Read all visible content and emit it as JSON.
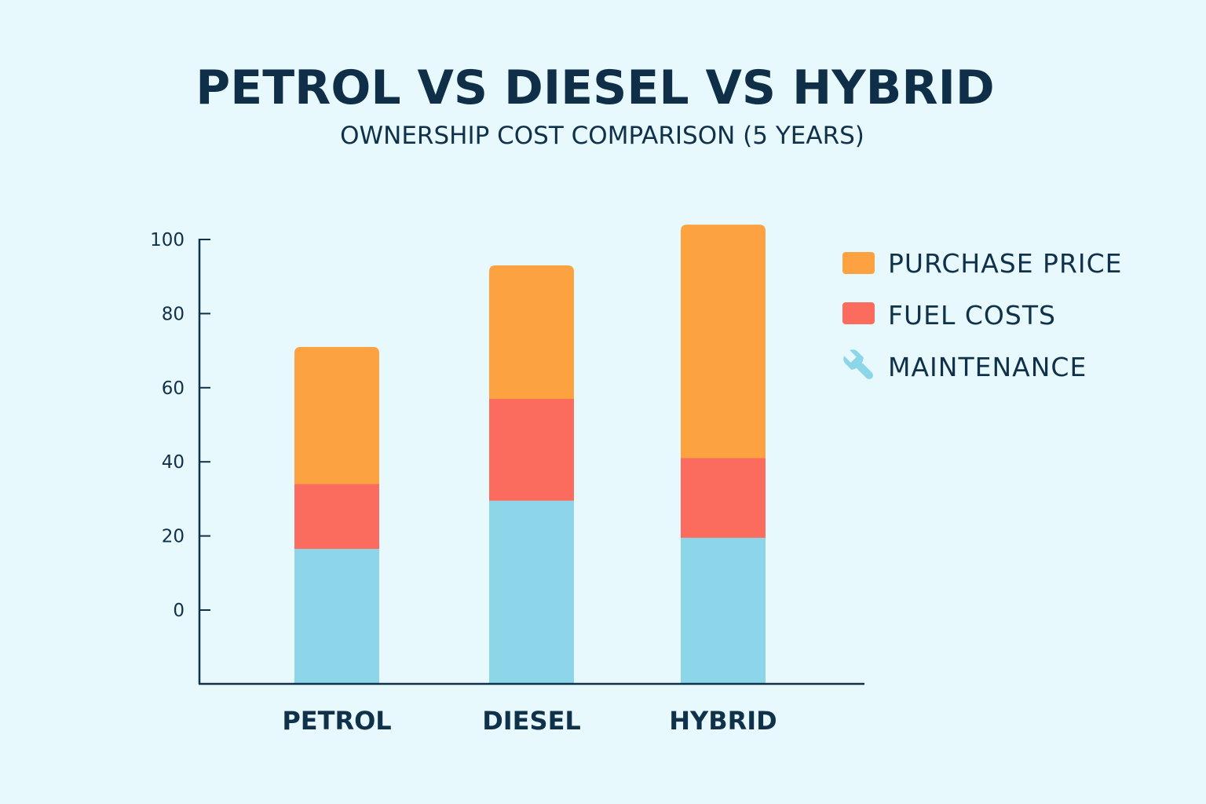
{
  "header": {
    "title": "PETROL VS DIESEL VS HYBRID",
    "subtitle": "OWNERSHIP COST COMPARISON (5 YEARS)"
  },
  "colors": {
    "background": "#e8f9fd",
    "text": "#10314a",
    "purchase": "#fca240",
    "fuel": "#fc6c5e",
    "maintenance": "#8dd6ea"
  },
  "legend": {
    "items": [
      {
        "label": "PURCHASE PRICE",
        "marker": "square",
        "color": "#fca240"
      },
      {
        "label": "FUEL COSTS",
        "marker": "square",
        "color": "#fc6c5e"
      },
      {
        "label": "MAINTENANCE",
        "marker": "wrench-icon",
        "color": "#8dd6ea"
      }
    ]
  },
  "chart_data": {
    "type": "bar",
    "stacked": true,
    "categories": [
      "PETROL",
      "DIESEL",
      "HYBRID"
    ],
    "series": [
      {
        "name": "MAINTENANCE",
        "color": "#8dd6ea",
        "values": [
          16.5,
          29.5,
          19.5
        ]
      },
      {
        "name": "FUEL COSTS",
        "color": "#fc6c5e",
        "values": [
          17.5,
          27.5,
          21.5
        ]
      },
      {
        "name": "PURCHASE PRICE",
        "color": "#fca240",
        "values": [
          37,
          36,
          63
        ]
      }
    ],
    "title": "PETROL VS DIESEL VS HYBRID",
    "subtitle": "OWNERSHIP COST COMPARISON (5 YEARS)",
    "xlabel": "",
    "ylabel": "",
    "yticks": [
      "0",
      "20",
      "40",
      "60",
      "80",
      "100"
    ],
    "yticks_values": [
      0,
      20,
      40,
      60,
      80,
      100
    ],
    "ylim": [
      -20,
      105
    ],
    "grid": false,
    "legend_position": "right"
  }
}
